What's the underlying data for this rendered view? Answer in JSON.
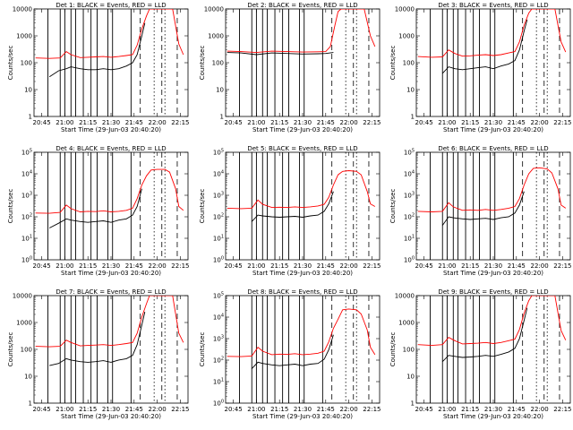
{
  "figure": {
    "xlabel": "Start Time (29-Jun-03 20:40:20)",
    "ylabel": "Counts/sec",
    "x_ticks": [
      "20:45",
      "21:00",
      "21:15",
      "21:30",
      "21:45",
      "22:00",
      "22:15"
    ],
    "colors": {
      "events": "#000000",
      "lld": "#ff0000",
      "background": "#ffffff"
    }
  },
  "chart_data": [
    {
      "type": "line",
      "title": "Det 1: BLACK = Events, RED = LLD",
      "ylabel": "Counts/sec",
      "xlabel": "Start Time (29-Jun-03 20:40:20)",
      "y_scale": "log",
      "ylim": [
        1,
        10000
      ],
      "y_ticks": [
        "1",
        "10",
        "100",
        "1000",
        "10000"
      ],
      "x_range": [
        "20:40",
        "22:20"
      ],
      "series": [
        {
          "name": "BLACK = Events",
          "color": "#000000",
          "x": [
            "20:50",
            "20:56",
            "21:01",
            "21:04",
            "21:10",
            "21:15",
            "21:20",
            "21:25",
            "21:30",
            "21:35",
            "21:40",
            "21:44",
            "21:47",
            "21:50",
            "21:52"
          ],
          "values": [
            30,
            50,
            60,
            70,
            60,
            55,
            55,
            60,
            55,
            60,
            75,
            100,
            200,
            1000,
            3000
          ]
        },
        {
          "name": "RED = LLD",
          "color": "#ff0000",
          "x": [
            "20:41",
            "20:50",
            "20:57",
            "21:01",
            "21:04",
            "21:10",
            "21:15",
            "21:20",
            "21:25",
            "21:30",
            "21:35",
            "21:40",
            "21:44",
            "21:47",
            "21:50",
            "21:53",
            "21:55",
            "22:00",
            "22:05",
            "22:10",
            "22:14",
            "22:17"
          ],
          "values": [
            150,
            145,
            150,
            260,
            200,
            155,
            160,
            165,
            170,
            160,
            170,
            185,
            200,
            450,
            1800,
            5500,
            10000,
            10000,
            10000,
            10000,
            500,
            200
          ]
        }
      ]
    },
    {
      "type": "line",
      "title": "Det 2: BLACK = Events, RED = LLD",
      "ylabel": "Counts/sec",
      "xlabel": "Start Time (29-Jun-03 20:40:20)",
      "y_scale": "log",
      "ylim": [
        1,
        10000
      ],
      "y_ticks": [
        "1",
        "10",
        "100",
        "1000",
        "10000"
      ],
      "x_range": [
        "20:40",
        "22:20"
      ],
      "series": [
        {
          "name": "BLACK = Events",
          "color": "#000000",
          "x": [
            "20:41",
            "20:50",
            "21:00",
            "21:10",
            "21:20",
            "21:30",
            "21:40",
            "21:45",
            "21:50"
          ],
          "values": [
            240,
            230,
            200,
            230,
            220,
            210,
            215,
            220,
            240
          ]
        },
        {
          "name": "RED = LLD",
          "color": "#ff0000",
          "x": [
            "20:41",
            "20:50",
            "21:00",
            "21:10",
            "21:20",
            "21:30",
            "21:40",
            "21:45",
            "21:48",
            "21:51",
            "21:53",
            "21:55",
            "22:00",
            "22:05",
            "22:10",
            "22:14",
            "22:17"
          ],
          "values": [
            270,
            260,
            240,
            270,
            260,
            250,
            255,
            260,
            400,
            2500,
            8000,
            10000,
            10000,
            10000,
            10000,
            1000,
            400
          ]
        }
      ]
    },
    {
      "type": "line",
      "title": "Det 3: BLACK = Events, RED = LLD",
      "ylabel": "Counts/sec",
      "xlabel": "Start Time (29-Jun-03 20:40:20)",
      "y_scale": "log",
      "ylim": [
        1,
        10000
      ],
      "y_ticks": [
        "1",
        "10",
        "100",
        "1000",
        "10000"
      ],
      "x_range": [
        "20:40",
        "22:20"
      ],
      "series": [
        {
          "name": "BLACK = Events",
          "color": "#000000",
          "x": [
            "20:57",
            "21:01",
            "21:05",
            "21:10",
            "21:15",
            "21:20",
            "21:25",
            "21:30",
            "21:35",
            "21:40",
            "21:44",
            "21:47",
            "21:50",
            "21:52"
          ],
          "values": [
            40,
            70,
            60,
            55,
            60,
            65,
            70,
            60,
            75,
            90,
            120,
            300,
            1500,
            4000
          ]
        },
        {
          "name": "RED = LLD",
          "color": "#ff0000",
          "x": [
            "20:41",
            "20:50",
            "20:57",
            "21:01",
            "21:05",
            "21:10",
            "21:15",
            "21:20",
            "21:25",
            "21:30",
            "21:35",
            "21:40",
            "21:44",
            "21:47",
            "21:50",
            "21:53",
            "21:55",
            "22:00",
            "22:05",
            "22:10",
            "22:14",
            "22:17"
          ],
          "values": [
            170,
            160,
            165,
            300,
            220,
            175,
            180,
            190,
            200,
            185,
            200,
            230,
            260,
            600,
            2500,
            7000,
            10000,
            10000,
            10000,
            10000,
            600,
            250
          ]
        }
      ]
    },
    {
      "type": "line",
      "title": "Det 4: BLACK = Events, RED = LLD",
      "ylabel": "Counts/sec",
      "xlabel": "Start Time (29-Jun-03 20:40:20)",
      "y_scale": "log",
      "ylim": [
        1,
        100000
      ],
      "y_ticks": [
        "10^0",
        "10^1",
        "10^2",
        "10^3",
        "10^4",
        "10^5"
      ],
      "x_range": [
        "20:40",
        "22:20"
      ],
      "series": [
        {
          "name": "BLACK = Events",
          "color": "#000000",
          "x": [
            "20:50",
            "20:56",
            "21:01",
            "21:04",
            "21:10",
            "21:15",
            "21:20",
            "21:25",
            "21:30",
            "21:35",
            "21:40",
            "21:44",
            "21:47",
            "21:50"
          ],
          "values": [
            30,
            50,
            80,
            70,
            60,
            55,
            60,
            65,
            55,
            70,
            80,
            120,
            300,
            2000
          ]
        },
        {
          "name": "RED = LLD",
          "color": "#ff0000",
          "x": [
            "20:41",
            "20:50",
            "20:57",
            "21:01",
            "21:04",
            "21:10",
            "21:15",
            "21:20",
            "21:25",
            "21:30",
            "21:35",
            "21:40",
            "21:44",
            "21:47",
            "21:50",
            "21:53",
            "21:56",
            "22:00",
            "22:05",
            "22:08",
            "22:12",
            "22:14",
            "22:17"
          ],
          "values": [
            150,
            145,
            160,
            350,
            240,
            170,
            180,
            175,
            190,
            170,
            180,
            200,
            250,
            700,
            3000,
            8000,
            15000,
            16000,
            16000,
            12000,
            2000,
            300,
            200
          ]
        }
      ]
    },
    {
      "type": "line",
      "title": "Det 5: BLACK = Events, RED = LLD",
      "ylabel": "Counts/sec",
      "xlabel": "Start Time (29-Jun-03 20:40:20)",
      "y_scale": "log",
      "ylim": [
        1,
        100000
      ],
      "y_ticks": [
        "10^0",
        "10^1",
        "10^2",
        "10^3",
        "10^4",
        "10^5"
      ],
      "x_range": [
        "20:40",
        "22:20"
      ],
      "series": [
        {
          "name": "BLACK = Events",
          "color": "#000000",
          "x": [
            "20:57",
            "21:01",
            "21:04",
            "21:10",
            "21:15",
            "21:20",
            "21:25",
            "21:30",
            "21:35",
            "21:40",
            "21:44",
            "21:47",
            "21:50"
          ],
          "values": [
            60,
            120,
            110,
            100,
            95,
            100,
            105,
            95,
            110,
            120,
            180,
            400,
            1500
          ]
        },
        {
          "name": "RED = LLD",
          "color": "#ff0000",
          "x": [
            "20:41",
            "20:50",
            "20:57",
            "21:01",
            "21:04",
            "21:10",
            "21:15",
            "21:20",
            "21:25",
            "21:30",
            "21:35",
            "21:40",
            "21:44",
            "21:47",
            "21:50",
            "21:53",
            "21:56",
            "22:00",
            "22:05",
            "22:08",
            "22:12",
            "22:14",
            "22:17"
          ],
          "values": [
            250,
            240,
            250,
            600,
            380,
            270,
            280,
            270,
            290,
            270,
            290,
            320,
            380,
            800,
            3000,
            9000,
            13000,
            14000,
            13000,
            9000,
            1500,
            400,
            300
          ]
        }
      ]
    },
    {
      "type": "line",
      "title": "Det 6: BLACK = Events, RED = LLD",
      "ylabel": "Counts/sec",
      "xlabel": "Start Time (29-Jun-03 20:40:20)",
      "y_scale": "log",
      "ylim": [
        1,
        100000
      ],
      "y_ticks": [
        "10^0",
        "10^1",
        "10^2",
        "10^3",
        "10^4",
        "10^5"
      ],
      "x_range": [
        "20:40",
        "22:20"
      ],
      "series": [
        {
          "name": "BLACK = Events",
          "color": "#000000",
          "x": [
            "20:57",
            "21:01",
            "21:04",
            "21:10",
            "21:15",
            "21:20",
            "21:25",
            "21:30",
            "21:35",
            "21:40",
            "21:44",
            "21:47",
            "21:50"
          ],
          "values": [
            40,
            100,
            90,
            80,
            75,
            80,
            85,
            75,
            90,
            100,
            150,
            350,
            1500
          ]
        },
        {
          "name": "RED = LLD",
          "color": "#ff0000",
          "x": [
            "20:41",
            "20:50",
            "20:57",
            "21:01",
            "21:04",
            "21:10",
            "21:15",
            "21:20",
            "21:25",
            "21:30",
            "21:35",
            "21:40",
            "21:44",
            "21:47",
            "21:50",
            "21:53",
            "21:56",
            "22:00",
            "22:05",
            "22:08",
            "22:12",
            "22:14",
            "22:17"
          ],
          "values": [
            180,
            170,
            180,
            450,
            290,
            200,
            210,
            200,
            220,
            200,
            220,
            250,
            300,
            700,
            3000,
            10000,
            18000,
            19000,
            17000,
            11000,
            2000,
            350,
            250
          ]
        }
      ]
    },
    {
      "type": "line",
      "title": "Det 7: BLACK = Events, RED = LLD",
      "ylabel": "Counts/sec",
      "xlabel": "Start Time (29-Jun-03 20:40:20)",
      "y_scale": "log",
      "ylim": [
        1,
        10000
      ],
      "y_ticks": [
        "1",
        "10",
        "100",
        "1000",
        "10000"
      ],
      "x_range": [
        "20:40",
        "22:20"
      ],
      "series": [
        {
          "name": "BLACK = Events",
          "color": "#000000",
          "x": [
            "20:50",
            "20:56",
            "21:01",
            "21:04",
            "21:10",
            "21:15",
            "21:20",
            "21:25",
            "21:30",
            "21:35",
            "21:40",
            "21:44",
            "21:47",
            "21:50",
            "21:52"
          ],
          "values": [
            25,
            30,
            45,
            40,
            35,
            33,
            35,
            38,
            33,
            40,
            45,
            60,
            150,
            800,
            2500
          ]
        },
        {
          "name": "RED = LLD",
          "color": "#ff0000",
          "x": [
            "20:41",
            "20:50",
            "20:57",
            "21:01",
            "21:04",
            "21:10",
            "21:15",
            "21:20",
            "21:25",
            "21:30",
            "21:35",
            "21:40",
            "21:44",
            "21:47",
            "21:50",
            "21:53",
            "21:55",
            "22:00",
            "22:05",
            "22:10",
            "22:14",
            "22:17"
          ],
          "values": [
            130,
            125,
            130,
            220,
            180,
            135,
            140,
            145,
            150,
            140,
            150,
            165,
            180,
            400,
            1600,
            5000,
            10000,
            10000,
            10000,
            10000,
            400,
            180
          ]
        }
      ]
    },
    {
      "type": "line",
      "title": "Det 8: BLACK = Events, RED = LLD",
      "ylabel": "Counts/sec",
      "xlabel": "Start Time (29-Jun-03 20:40:20)",
      "y_scale": "log",
      "ylim": [
        1,
        100000
      ],
      "y_ticks": [
        "10^0",
        "10^1",
        "10^2",
        "10^3",
        "10^4",
        "10^5"
      ],
      "x_range": [
        "20:40",
        "22:20"
      ],
      "series": [
        {
          "name": "BLACK = Events",
          "color": "#000000",
          "x": [
            "20:57",
            "21:01",
            "21:04",
            "21:10",
            "21:15",
            "21:20",
            "21:25",
            "21:30",
            "21:35",
            "21:40",
            "21:44",
            "21:47",
            "21:50"
          ],
          "values": [
            40,
            80,
            70,
            60,
            55,
            60,
            65,
            55,
            65,
            70,
            110,
            300,
            1500
          ]
        },
        {
          "name": "RED = LLD",
          "color": "#ff0000",
          "x": [
            "20:41",
            "20:50",
            "20:57",
            "21:01",
            "21:04",
            "21:10",
            "21:15",
            "21:20",
            "21:25",
            "21:30",
            "21:35",
            "21:40",
            "21:44",
            "21:47",
            "21:50",
            "21:53",
            "21:56",
            "22:00",
            "22:05",
            "22:08",
            "22:12",
            "22:14",
            "22:17"
          ],
          "values": [
            150,
            145,
            155,
            400,
            260,
            180,
            190,
            185,
            200,
            180,
            190,
            210,
            260,
            700,
            3000,
            8000,
            22000,
            24000,
            22000,
            14000,
            2500,
            400,
            180
          ]
        }
      ]
    },
    {
      "type": "line",
      "title": "Det 9: BLACK = Events, RED = LLD",
      "ylabel": "Counts/sec",
      "xlabel": "Start Time (29-Jun-03 20:40:20)",
      "y_scale": "log",
      "ylim": [
        1,
        10000
      ],
      "y_ticks": [
        "1",
        "10",
        "100",
        "1000",
        "10000"
      ],
      "x_range": [
        "20:40",
        "22:20"
      ],
      "series": [
        {
          "name": "BLACK = Events",
          "color": "#000000",
          "x": [
            "20:57",
            "21:01",
            "21:05",
            "21:10",
            "21:15",
            "21:20",
            "21:25",
            "21:30",
            "21:35",
            "21:40",
            "21:44",
            "21:47",
            "21:50",
            "21:52"
          ],
          "values": [
            35,
            60,
            55,
            50,
            52,
            55,
            60,
            55,
            65,
            80,
            110,
            250,
            1200,
            3500
          ]
        },
        {
          "name": "RED = LLD",
          "color": "#ff0000",
          "x": [
            "20:41",
            "20:50",
            "20:57",
            "21:01",
            "21:05",
            "21:10",
            "21:15",
            "21:20",
            "21:25",
            "21:30",
            "21:35",
            "21:40",
            "21:44",
            "21:47",
            "21:50",
            "21:53",
            "21:55",
            "22:00",
            "22:05",
            "22:10",
            "22:14",
            "22:17"
          ],
          "values": [
            150,
            140,
            150,
            280,
            210,
            160,
            165,
            170,
            180,
            165,
            180,
            210,
            240,
            550,
            2200,
            6500,
            10000,
            10000,
            10000,
            10000,
            500,
            220
          ]
        }
      ]
    }
  ]
}
